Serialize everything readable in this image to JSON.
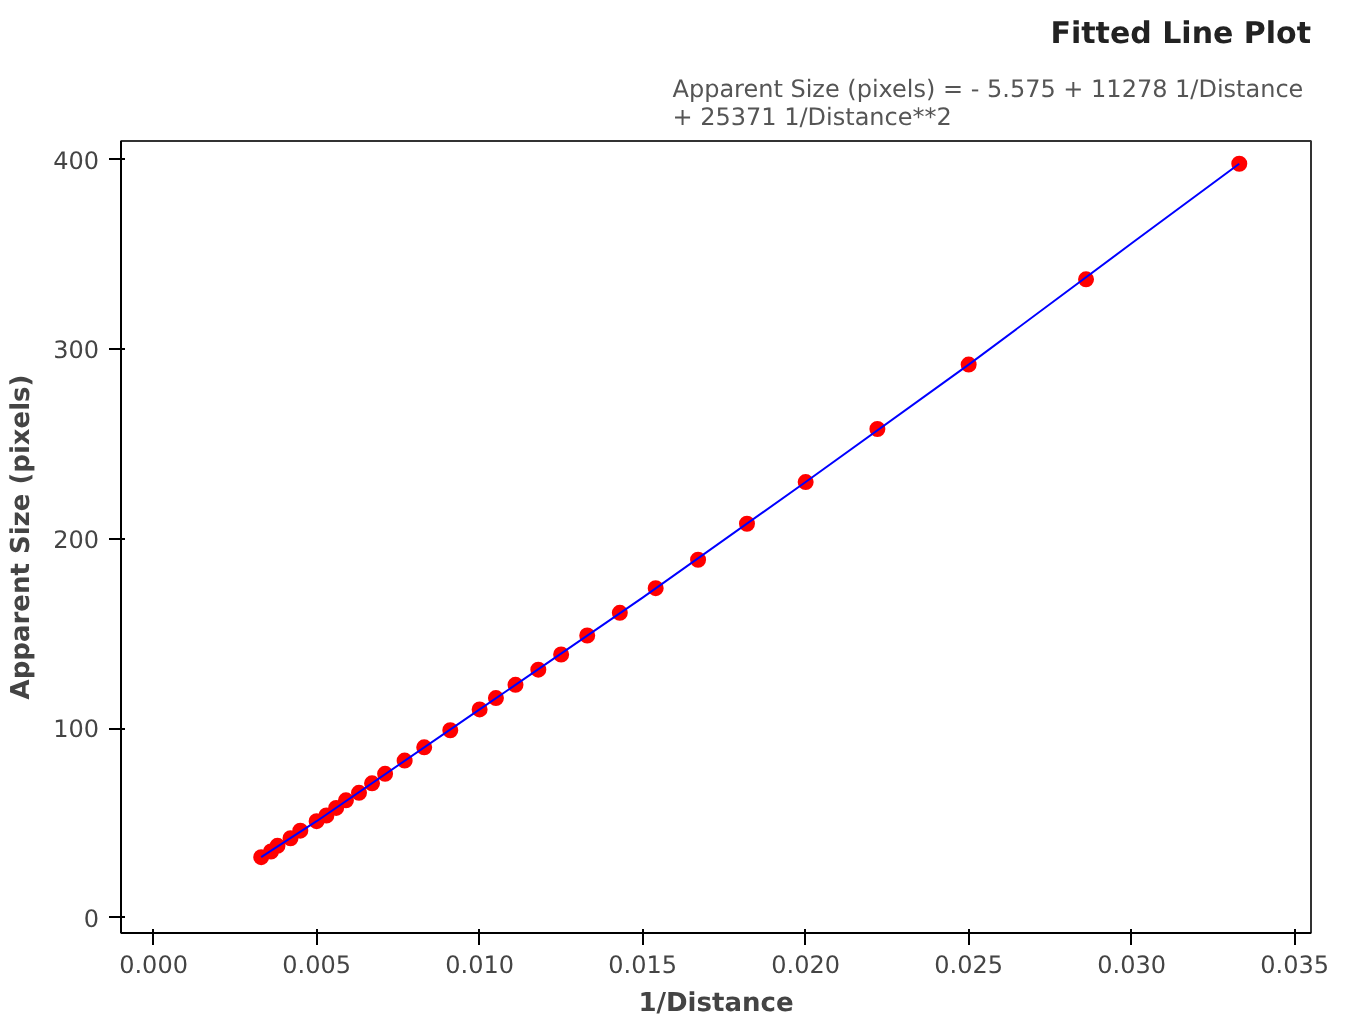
{
  "chart_data": {
    "type": "scatter",
    "title": "Fitted Line Plot",
    "subtitle": "Apparent Size (pixels) =  - 5.575 + 11278 1/Distance\n+ 25371 1/Distance**2",
    "xlabel": "1/Distance",
    "ylabel": "Apparent Size (pixels)",
    "xlim": [
      -0.001,
      0.0355
    ],
    "ylim": [
      -8,
      410
    ],
    "xticks": [
      {
        "value": 0,
        "label": "0.000"
      },
      {
        "value": 0.005,
        "label": "0.005"
      },
      {
        "value": 0.01,
        "label": "0.010"
      },
      {
        "value": 0.015,
        "label": "0.015"
      },
      {
        "value": 0.02,
        "label": "0.020"
      },
      {
        "value": 0.025,
        "label": "0.025"
      },
      {
        "value": 0.03,
        "label": "0.030"
      },
      {
        "value": 0.035,
        "label": "0.035"
      }
    ],
    "yticks": [
      0,
      100,
      200,
      300,
      400
    ],
    "grid": false,
    "series": [
      {
        "color": "#ff0000",
        "marker": "circle",
        "x": [
          0.0333,
          0.0286,
          0.025,
          0.0222,
          0.02,
          0.0182,
          0.0167,
          0.0154,
          0.0143,
          0.0133,
          0.0125,
          0.0118,
          0.0111,
          0.0105,
          0.01,
          0.0091,
          0.0083,
          0.0077,
          0.0071,
          0.0067,
          0.0063,
          0.0059,
          0.0056,
          0.0053,
          0.005,
          0.0045,
          0.0042,
          0.0038,
          0.0036,
          0.0033
        ],
        "values": [
          398,
          337,
          292,
          258,
          230,
          208,
          189,
          174,
          161,
          149,
          139,
          131,
          123,
          116,
          110,
          99,
          90,
          83,
          76,
          71,
          66,
          62,
          58,
          54,
          51,
          46,
          42,
          38,
          35,
          32
        ]
      },
      {
        "type": "line",
        "color": "#0000ff",
        "marker": "none",
        "line_style": "solid",
        "x": [
          0.0033,
          0.005,
          0.01,
          0.015,
          0.02,
          0.025,
          0.03,
          0.0333
        ],
        "values": [
          32,
          51,
          110,
          169,
          230,
          292,
          356,
          398
        ]
      }
    ]
  }
}
